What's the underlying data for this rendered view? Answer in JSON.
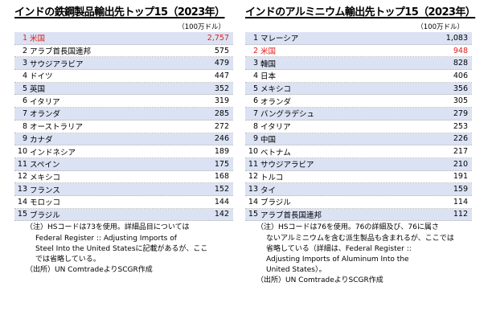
{
  "chart_data": [
    {
      "type": "table",
      "title": "インドの鉄鋼製品輸出先トップ15（2023年）",
      "unit": "（100万ドル）",
      "rows": [
        {
          "rank": "1",
          "country": "米国",
          "value": "2,757",
          "highlight": true
        },
        {
          "rank": "2",
          "country": "アラブ首長国連邦",
          "value": "575"
        },
        {
          "rank": "3",
          "country": "サウジアラビア",
          "value": "479"
        },
        {
          "rank": "4",
          "country": "ドイツ",
          "value": "447"
        },
        {
          "rank": "5",
          "country": "英国",
          "value": "352"
        },
        {
          "rank": "6",
          "country": "イタリア",
          "value": "319"
        },
        {
          "rank": "7",
          "country": "オランダ",
          "value": "285"
        },
        {
          "rank": "8",
          "country": "オーストラリア",
          "value": "272"
        },
        {
          "rank": "9",
          "country": "カナダ",
          "value": "246"
        },
        {
          "rank": "10",
          "country": "インドネシア",
          "value": "189"
        },
        {
          "rank": "11",
          "country": "スペイン",
          "value": "175"
        },
        {
          "rank": "12",
          "country": "メキシコ",
          "value": "168"
        },
        {
          "rank": "13",
          "country": "フランス",
          "value": "152"
        },
        {
          "rank": "14",
          "country": "モロッコ",
          "value": "144"
        },
        {
          "rank": "15",
          "country": "ブラジル",
          "value": "142"
        }
      ],
      "notes": [
        "（注）HSコードは73を使用。詳細品目については",
        "Federal Register :: Adjusting Imports of",
        "Steel Into the United Statesに記載があるが、ここ",
        "では省略している。",
        "（出所）UN ComtradeよりSCGR作成"
      ]
    },
    {
      "type": "table",
      "title": "インドのアルミニウム輸出先トップ15（2023年）",
      "unit": "（100万ドル）",
      "rows": [
        {
          "rank": "1",
          "country": "マレーシア",
          "value": "1,083"
        },
        {
          "rank": "2",
          "country": "米国",
          "value": "948",
          "highlight": true
        },
        {
          "rank": "3",
          "country": "韓国",
          "value": "828"
        },
        {
          "rank": "4",
          "country": "日本",
          "value": "406"
        },
        {
          "rank": "5",
          "country": "メキシコ",
          "value": "356"
        },
        {
          "rank": "6",
          "country": "オランダ",
          "value": "305"
        },
        {
          "rank": "7",
          "country": "バングラデシュ",
          "value": "279"
        },
        {
          "rank": "8",
          "country": "イタリア",
          "value": "253"
        },
        {
          "rank": "9",
          "country": "中国",
          "value": "226"
        },
        {
          "rank": "10",
          "country": "ベトナム",
          "value": "217"
        },
        {
          "rank": "11",
          "country": "サウジアラビア",
          "value": "210"
        },
        {
          "rank": "12",
          "country": "トルコ",
          "value": "191"
        },
        {
          "rank": "13",
          "country": "タイ",
          "value": "159"
        },
        {
          "rank": "14",
          "country": "ブラジル",
          "value": "114"
        },
        {
          "rank": "15",
          "country": "アラブ首長国連邦",
          "value": "112"
        }
      ],
      "notes": [
        "（注）HSコードは76を使用。76の詳細及び、76に属さ",
        "ないアルミニウムを含む派生製品も含まれるが、ここでは",
        "省略している（詳細は、Federal Register ::",
        "Adjusting Imports of Aluminum Into the",
        "United States）。",
        "（出所）UN ComtradeよりSCGR作成"
      ]
    }
  ]
}
